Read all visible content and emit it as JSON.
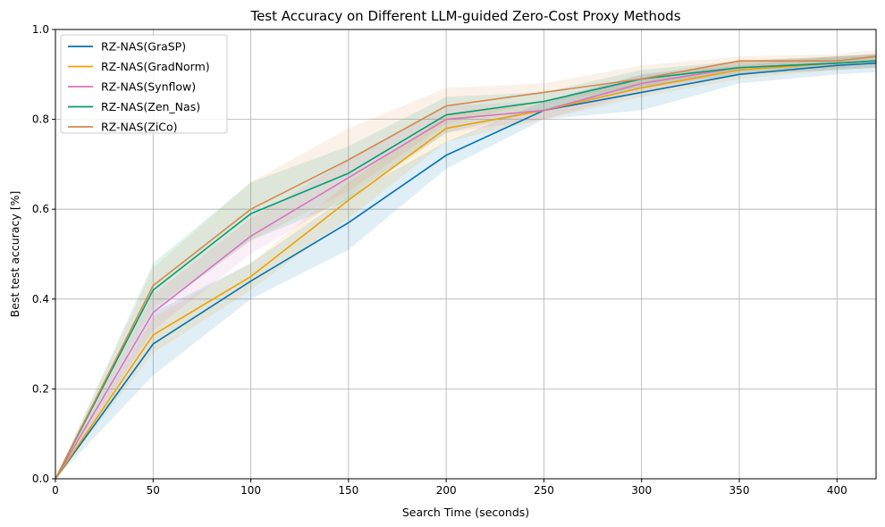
{
  "chart_data": {
    "type": "line",
    "title": "Test Accuracy on Different LLM-guided Zero-Cost Proxy Methods",
    "xlabel": "Search Time (seconds)",
    "ylabel": "Best test accuracy [%]",
    "xlim": [
      0,
      420
    ],
    "ylim": [
      0,
      1.0
    ],
    "xticks": [
      0,
      50,
      100,
      150,
      200,
      250,
      300,
      350,
      400
    ],
    "yticks": [
      0.0,
      0.2,
      0.4,
      0.6,
      0.8,
      1.0
    ],
    "grid": true,
    "legend_position": "top-left",
    "x": [
      0,
      50,
      100,
      150,
      200,
      250,
      300,
      350,
      400,
      420
    ],
    "series": [
      {
        "name": "RZ-NAS(GraSP)",
        "color": "#0072b2",
        "values": [
          0,
          0.3,
          0.44,
          0.57,
          0.72,
          0.82,
          0.86,
          0.9,
          0.92,
          0.925
        ],
        "lower": [
          0,
          0.23,
          0.4,
          0.51,
          0.69,
          0.8,
          0.82,
          0.88,
          0.9,
          0.905
        ],
        "upper": [
          0,
          0.37,
          0.48,
          0.63,
          0.75,
          0.84,
          0.9,
          0.92,
          0.94,
          0.945
        ]
      },
      {
        "name": "RZ-NAS(GradNorm)",
        "color": "#f0a000",
        "values": [
          0,
          0.32,
          0.45,
          0.62,
          0.78,
          0.82,
          0.87,
          0.91,
          0.925,
          0.93
        ],
        "lower": [
          0,
          0.28,
          0.42,
          0.58,
          0.75,
          0.8,
          0.85,
          0.89,
          0.91,
          0.915
        ],
        "upper": [
          0,
          0.36,
          0.48,
          0.66,
          0.81,
          0.84,
          0.89,
          0.93,
          0.94,
          0.945
        ]
      },
      {
        "name": "RZ-NAS(Synflow)",
        "color": "#d874c0",
        "values": [
          0,
          0.37,
          0.54,
          0.67,
          0.8,
          0.82,
          0.88,
          0.915,
          0.925,
          0.93
        ],
        "lower": [
          0,
          0.33,
          0.5,
          0.63,
          0.77,
          0.8,
          0.86,
          0.9,
          0.91,
          0.915
        ],
        "upper": [
          0,
          0.41,
          0.58,
          0.71,
          0.83,
          0.84,
          0.9,
          0.93,
          0.94,
          0.945
        ]
      },
      {
        "name": "RZ-NAS(Zen_Nas)",
        "color": "#009e73",
        "values": [
          0,
          0.42,
          0.59,
          0.68,
          0.81,
          0.84,
          0.89,
          0.915,
          0.925,
          0.93
        ],
        "lower": [
          0,
          0.37,
          0.53,
          0.62,
          0.77,
          0.82,
          0.87,
          0.9,
          0.91,
          0.915
        ],
        "upper": [
          0,
          0.48,
          0.66,
          0.74,
          0.85,
          0.86,
          0.91,
          0.93,
          0.94,
          0.945
        ]
      },
      {
        "name": "RZ-NAS(ZiCo)",
        "color": "#d4884e",
        "values": [
          0,
          0.43,
          0.6,
          0.71,
          0.83,
          0.86,
          0.89,
          0.93,
          0.93,
          0.94
        ],
        "lower": [
          0,
          0.38,
          0.53,
          0.64,
          0.79,
          0.84,
          0.87,
          0.91,
          0.915,
          0.925
        ],
        "upper": [
          0,
          0.47,
          0.66,
          0.78,
          0.87,
          0.88,
          0.92,
          0.94,
          0.945,
          0.955
        ]
      }
    ]
  }
}
